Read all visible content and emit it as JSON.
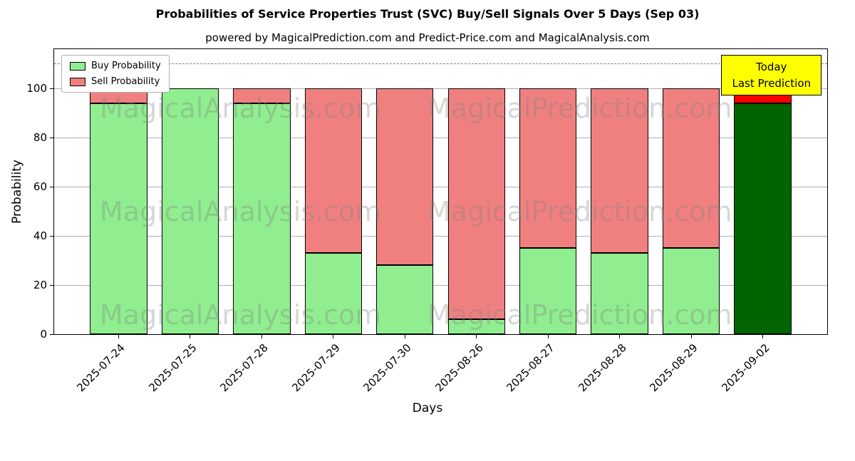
{
  "title": "Probabilities of Service Properties Trust (SVC) Buy/Sell Signals Over 5 Days (Sep 03)",
  "subtitle": "powered by MagicalPrediction.com and Predict-Price.com and MagicalAnalysis.com",
  "xlabel": "Days",
  "ylabel": "Probability",
  "legend": [
    {
      "label": "Buy Probability",
      "color": "#90EE90"
    },
    {
      "label": "Sell Probability",
      "color": "#F08080"
    }
  ],
  "annotation": {
    "line1": "Today",
    "line2": "Last Prediction",
    "bg_color": "#FFFF00"
  },
  "watermarks": [
    "MagicalAnalysis.com",
    "MagicalPrediction.com"
  ],
  "chart_data": {
    "type": "bar",
    "stacked": true,
    "title": "Probabilities of Service Properties Trust (SVC) Buy/Sell Signals Over 5 Days (Sep 03)",
    "xlabel": "Days",
    "ylabel": "Probability",
    "categories": [
      "2025-07-24",
      "2025-07-25",
      "2025-07-28",
      "2025-07-29",
      "2025-07-30",
      "2025-08-26",
      "2025-08-27",
      "2025-08-28",
      "2025-08-29",
      "2025-09-02"
    ],
    "series": [
      {
        "name": "Buy Probability",
        "color": "#90EE90",
        "values": [
          94,
          100,
          94,
          33,
          28,
          6,
          35,
          33,
          35,
          94
        ]
      },
      {
        "name": "Sell Probability",
        "color": "#F08080",
        "values": [
          6,
          0,
          6,
          67,
          72,
          94,
          65,
          67,
          65,
          6
        ]
      }
    ],
    "today_bar": {
      "category": "2025-09-02",
      "buy_color": "#006400",
      "sell_color": "#FF0000"
    },
    "ylim": [
      0,
      116
    ],
    "yticks": [
      0,
      20,
      40,
      60,
      80,
      100
    ],
    "dashed_line_y": 110,
    "grid": true,
    "legend_position": "upper left",
    "bar_edge_color": "#000000",
    "bar_width_fraction": 0.8
  }
}
